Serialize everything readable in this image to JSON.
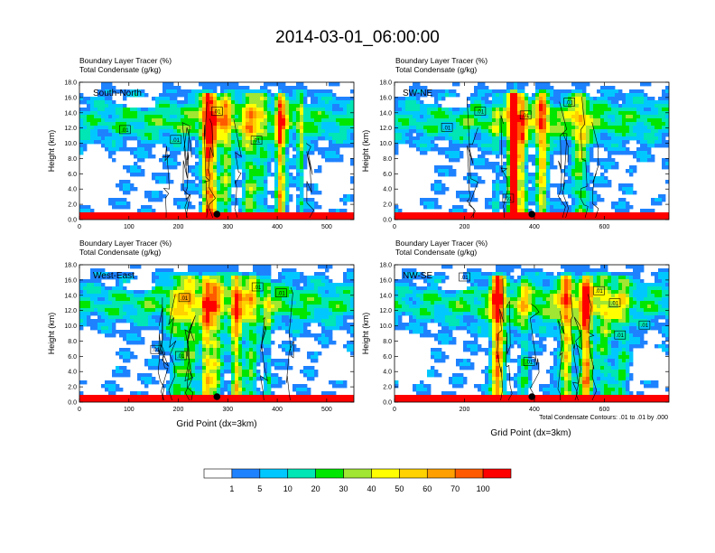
{
  "title": "2014-03-01_06:00:00",
  "chart_data": [
    {
      "type": "heatmap",
      "subtitle_line1": "Boundary Layer Tracer    (%)",
      "subtitle_line2": "Total Condensate    (g/kg)",
      "panel_label": "South-North",
      "ylabel": "Height (km)",
      "xlabel": "",
      "xlim": [
        0,
        555
      ],
      "ylim": [
        0,
        18
      ],
      "x_ticks": [
        0,
        100,
        200,
        300,
        400,
        500
      ],
      "y_ticks": [
        "0.0",
        "2.0",
        "4.0",
        "6.0",
        "8.0",
        "10.0",
        "12.0",
        "14.0",
        "16.0",
        "18.0"
      ],
      "marker_x": 278,
      "contour_labels": [
        {
          "text": ".01",
          "x": 92,
          "y": 11.8
        },
        {
          "text": ".01",
          "x": 195,
          "y": 10.5
        },
        {
          "text": ".01",
          "x": 278,
          "y": 14.2
        },
        {
          "text": ".01",
          "x": 358,
          "y": 10.4
        }
      ]
    },
    {
      "type": "heatmap",
      "subtitle_line1": "Boundary Layer Tracer    (%)",
      "subtitle_line2": "Total Condensate    (g/kg)",
      "panel_label": "SW-NE",
      "ylabel": "Height (km)",
      "xlabel": "",
      "xlim": [
        0,
        785
      ],
      "ylim": [
        0,
        18
      ],
      "x_ticks": [
        0,
        200,
        400,
        600
      ],
      "y_ticks": [
        "0.0",
        "2.0",
        "4.0",
        "6.0",
        "8.0",
        "10.0",
        "12.0",
        "14.0",
        "16.0",
        "18.0"
      ],
      "marker_x": 393,
      "contour_labels": [
        {
          "text": ".01",
          "x": 150,
          "y": 12.1
        },
        {
          "text": ".01",
          "x": 245,
          "y": 14.2
        },
        {
          "text": ".01",
          "x": 375,
          "y": 13.7
        },
        {
          "text": ".01",
          "x": 500,
          "y": 15.4
        },
        {
          "text": ".01",
          "x": 325,
          "y": 2.8
        }
      ]
    },
    {
      "type": "heatmap",
      "subtitle_line1": "Boundary Layer Tracer    (%)",
      "subtitle_line2": "Total Condensate    (g/kg)",
      "panel_label": "West-East",
      "ylabel": "Height (km)",
      "xlabel": "Grid Point (dx=3km)",
      "xlim": [
        0,
        555
      ],
      "ylim": [
        0,
        18
      ],
      "x_ticks": [
        0,
        100,
        200,
        300,
        400,
        500
      ],
      "y_ticks": [
        "0.0",
        "2.0",
        "4.0",
        "6.0",
        "8.0",
        "10.0",
        "12.0",
        "14.0",
        "16.0",
        "18.0"
      ],
      "marker_x": 278,
      "contour_labels": [
        {
          "text": ".01",
          "x": 212,
          "y": 13.7
        },
        {
          "text": ".01",
          "x": 155,
          "y": 6.9
        },
        {
          "text": ".01",
          "x": 205,
          "y": 6.1
        },
        {
          "text": ".01",
          "x": 360,
          "y": 15.1
        },
        {
          "text": ".01",
          "x": 408,
          "y": 14.3
        }
      ]
    },
    {
      "type": "heatmap",
      "subtitle_line1": "Boundary Layer Tracer    (%)",
      "subtitle_line2": "Total Condensate    (g/kg)",
      "panel_label": "NW-SE",
      "ylabel": "Height (km)",
      "xlabel": "Grid Point (dx=3km)",
      "xlim": [
        0,
        785
      ],
      "ylim": [
        0,
        18
      ],
      "x_ticks": [
        0,
        200,
        400,
        600
      ],
      "y_ticks": [
        "0.0",
        "2.0",
        "4.0",
        "6.0",
        "8.0",
        "10.0",
        "12.0",
        "14.0",
        "16.0",
        "18.0"
      ],
      "marker_x": 393,
      "contour_labels": [
        {
          "text": ".01",
          "x": 200,
          "y": 16.4
        },
        {
          "text": ".01",
          "x": 385,
          "y": 5.3
        },
        {
          "text": ".01",
          "x": 585,
          "y": 14.6
        },
        {
          "text": ".01",
          "x": 630,
          "y": 13.0
        },
        {
          "text": ".01",
          "x": 715,
          "y": 10.1
        },
        {
          "text": ".01",
          "x": 645,
          "y": 8.8
        }
      ]
    }
  ],
  "contour_note": "Total Condensate Contours: .01 to .01 by .000",
  "colorbar": {
    "labels": [
      "1",
      "5",
      "10",
      "20",
      "30",
      "40",
      "50",
      "60",
      "70",
      "100"
    ],
    "colors": [
      "#ffffff",
      "#1e82ff",
      "#00c8ff",
      "#00e6b4",
      "#00e600",
      "#a0e632",
      "#ffff00",
      "#ffd200",
      "#ffa000",
      "#ff5a00",
      "#ff0000"
    ]
  }
}
